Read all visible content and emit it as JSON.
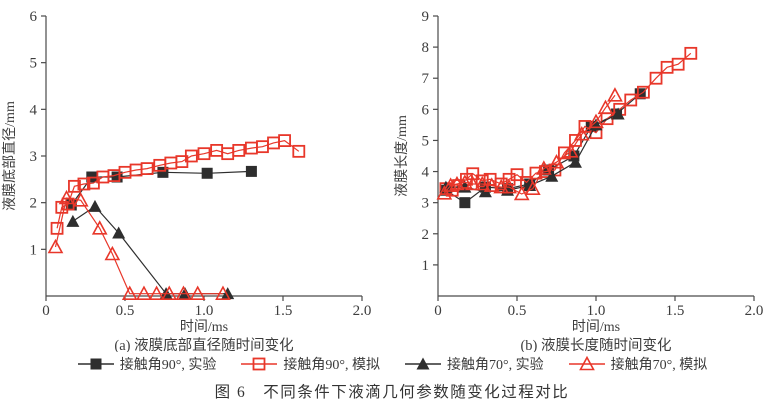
{
  "figure": {
    "caption": "图 6　不同条件下液滴几何参数随变化过程对比"
  },
  "colors": {
    "red": "#e8372a",
    "black": "#2e2e2e",
    "axis": "#4a4a4a",
    "text": "#3d3d3d"
  },
  "legend": {
    "position": "bottom-center",
    "items": [
      {
        "label": "接触角90°, 实验",
        "marker": "square-filled",
        "color": "#2e2e2e"
      },
      {
        "label": "接触角90°, 模拟",
        "marker": "square-open",
        "color": "#e8372a"
      },
      {
        "label": "接触角70°, 实验",
        "marker": "triangle-filled",
        "color": "#2e2e2e"
      },
      {
        "label": "接触角70°, 模拟",
        "marker": "triangle-open",
        "color": "#e8372a"
      }
    ]
  },
  "chart_data": [
    {
      "type": "line",
      "title": "(a) 液膜底部直径随时间变化",
      "xlabel": "时间/ms",
      "ylabel": "液膜底部直径/mm",
      "xlim": [
        0,
        2.0
      ],
      "ylim": [
        0,
        6
      ],
      "xtick_labels": [
        "0",
        "0.5",
        "1.0",
        "1.5",
        "2.0"
      ],
      "ytick_labels": [
        "1",
        "2",
        "3",
        "4",
        "5",
        "6"
      ],
      "grid": false,
      "series": [
        {
          "name": "接触角90°, 实验",
          "marker": "square-filled",
          "color": "#2e2e2e",
          "points": [
            [
              0.16,
              1.95
            ],
            [
              0.29,
              2.55
            ],
            [
              0.45,
              2.55
            ],
            [
              0.74,
              2.65
            ],
            [
              1.02,
              2.63
            ],
            [
              1.3,
              2.67
            ]
          ]
        },
        {
          "name": "接触角90°, 模拟",
          "marker": "square-open",
          "color": "#e8372a",
          "points": [
            [
              0.07,
              1.45
            ],
            [
              0.1,
              1.9
            ],
            [
              0.14,
              1.97
            ],
            [
              0.18,
              2.35
            ],
            [
              0.24,
              2.4
            ],
            [
              0.3,
              2.42
            ],
            [
              0.36,
              2.55
            ],
            [
              0.43,
              2.58
            ],
            [
              0.5,
              2.65
            ],
            [
              0.57,
              2.7
            ],
            [
              0.64,
              2.73
            ],
            [
              0.72,
              2.8
            ],
            [
              0.79,
              2.85
            ],
            [
              0.86,
              2.88
            ],
            [
              0.92,
              3.0
            ],
            [
              1.0,
              3.05
            ],
            [
              1.08,
              3.12
            ],
            [
              1.15,
              3.05
            ],
            [
              1.22,
              3.12
            ],
            [
              1.3,
              3.17
            ],
            [
              1.37,
              3.2
            ],
            [
              1.44,
              3.28
            ],
            [
              1.51,
              3.33
            ],
            [
              1.6,
              3.1
            ]
          ]
        },
        {
          "name": "接触角70°, 实验",
          "marker": "triangle-filled",
          "color": "#2e2e2e",
          "points": [
            [
              0.17,
              1.6
            ],
            [
              0.31,
              1.92
            ],
            [
              0.46,
              1.35
            ],
            [
              0.76,
              0.05
            ],
            [
              0.88,
              0.05
            ],
            [
              1.15,
              0.05
            ]
          ]
        },
        {
          "name": "接触角70°, 模拟",
          "marker": "triangle-open",
          "color": "#e8372a",
          "points": [
            [
              0.06,
              1.05
            ],
            [
              0.13,
              2.1
            ],
            [
              0.22,
              2.05
            ],
            [
              0.34,
              1.45
            ],
            [
              0.42,
              0.9
            ],
            [
              0.53,
              0.05
            ],
            [
              0.62,
              0.05
            ],
            [
              0.7,
              0.05
            ],
            [
              0.78,
              0.05
            ],
            [
              0.87,
              0.05
            ],
            [
              0.96,
              0.05
            ],
            [
              1.12,
              0.05
            ]
          ]
        }
      ]
    },
    {
      "type": "line",
      "title": "(b) 液膜长度随时间变化",
      "xlabel": "时间/ms",
      "ylabel": "液膜长度/mm",
      "xlim": [
        0,
        2.0
      ],
      "ylim": [
        0,
        9
      ],
      "xtick_labels": [
        "0",
        "0.5",
        "1.0",
        "1.5",
        "2.0"
      ],
      "ytick_labels": [
        "1",
        "2",
        "3",
        "4",
        "5",
        "6",
        "7",
        "8",
        "9"
      ],
      "grid": false,
      "series": [
        {
          "name": "接触角90°, 实验",
          "marker": "square-filled",
          "color": "#2e2e2e",
          "points": [
            [
              0.05,
              3.4
            ],
            [
              0.17,
              3.0
            ],
            [
              0.3,
              3.5
            ],
            [
              0.44,
              3.45
            ],
            [
              0.58,
              3.6
            ],
            [
              0.7,
              4.05
            ],
            [
              0.86,
              4.5
            ],
            [
              0.97,
              5.45
            ],
            [
              1.13,
              5.85
            ],
            [
              1.28,
              6.5
            ]
          ]
        },
        {
          "name": "接触角90°, 模拟",
          "marker": "square-open",
          "color": "#e8372a",
          "points": [
            [
              0.05,
              3.45
            ],
            [
              0.09,
              3.4
            ],
            [
              0.13,
              3.55
            ],
            [
              0.18,
              3.75
            ],
            [
              0.22,
              3.93
            ],
            [
              0.28,
              3.7
            ],
            [
              0.33,
              3.75
            ],
            [
              0.4,
              3.6
            ],
            [
              0.45,
              3.75
            ],
            [
              0.5,
              3.9
            ],
            [
              0.56,
              3.65
            ],
            [
              0.62,
              3.95
            ],
            [
              0.68,
              4.0
            ],
            [
              0.74,
              4.05
            ],
            [
              0.8,
              4.6
            ],
            [
              0.87,
              5.0
            ],
            [
              0.93,
              5.45
            ],
            [
              1.0,
              5.25
            ],
            [
              1.07,
              5.7
            ],
            [
              1.15,
              6.0
            ],
            [
              1.22,
              6.3
            ],
            [
              1.3,
              6.55
            ],
            [
              1.38,
              7.0
            ],
            [
              1.45,
              7.35
            ],
            [
              1.52,
              7.45
            ],
            [
              1.6,
              7.8
            ]
          ]
        },
        {
          "name": "接触角70°, 实验",
          "marker": "triangle-filled",
          "color": "#2e2e2e",
          "points": [
            [
              0.05,
              3.5
            ],
            [
              0.17,
              3.5
            ],
            [
              0.3,
              3.35
            ],
            [
              0.44,
              3.4
            ],
            [
              0.58,
              3.55
            ],
            [
              0.72,
              3.85
            ],
            [
              0.87,
              4.3
            ],
            [
              1.0,
              5.5
            ],
            [
              1.14,
              5.85
            ]
          ]
        },
        {
          "name": "接触角70°, 模拟",
          "marker": "triangle-open",
          "color": "#e8372a",
          "points": [
            [
              0.04,
              3.3
            ],
            [
              0.08,
              3.55
            ],
            [
              0.12,
              3.6
            ],
            [
              0.17,
              3.65
            ],
            [
              0.22,
              3.6
            ],
            [
              0.28,
              3.6
            ],
            [
              0.34,
              3.55
            ],
            [
              0.4,
              3.5
            ],
            [
              0.45,
              3.5
            ],
            [
              0.53,
              3.28
            ],
            [
              0.6,
              3.45
            ],
            [
              0.67,
              4.1
            ],
            [
              0.75,
              4.3
            ],
            [
              0.84,
              4.65
            ],
            [
              0.91,
              5.2
            ],
            [
              1.0,
              5.6
            ],
            [
              1.06,
              6.05
            ],
            [
              1.12,
              6.45
            ]
          ]
        }
      ]
    }
  ]
}
